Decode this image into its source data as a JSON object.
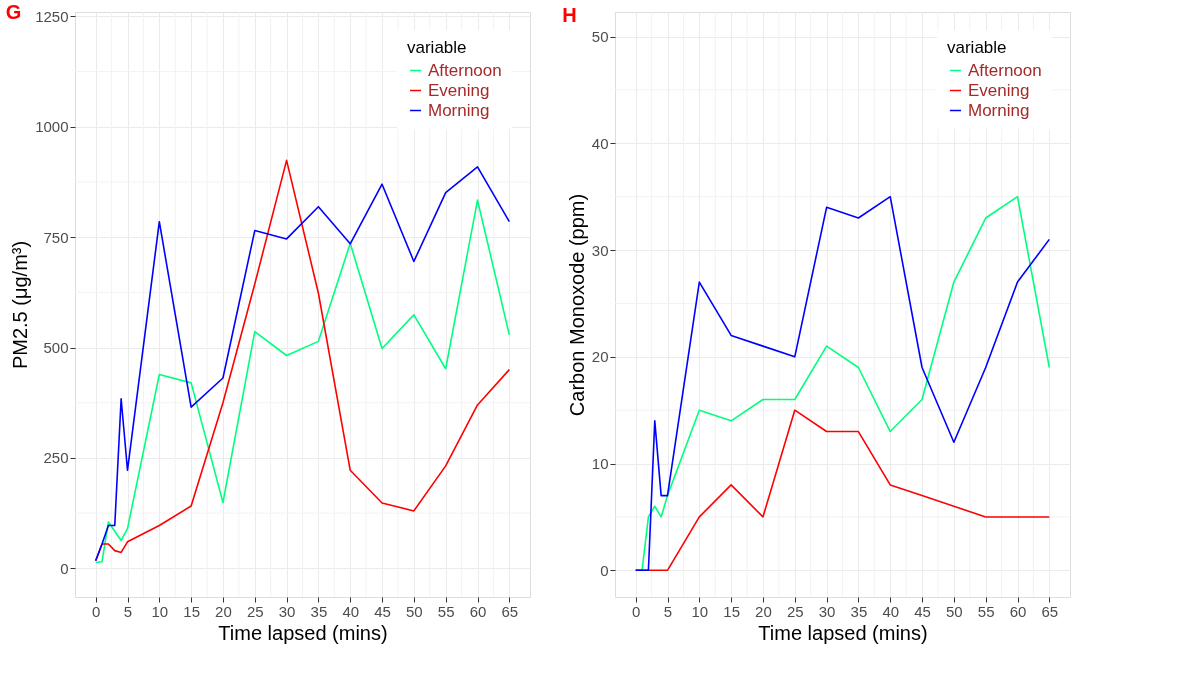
{
  "chart_data": [
    {
      "type": "line",
      "title": "G",
      "xlabel": "Time lapsed (mins)",
      "ylabel": "PM2.5 (μg/m³)",
      "legend_title": "variable",
      "legend": "top right",
      "grid": true,
      "line_style": "solid",
      "x": [
        0,
        1,
        2,
        3,
        4,
        5,
        10,
        15,
        20,
        25,
        30,
        35,
        40,
        45,
        50,
        55,
        60,
        65
      ],
      "xlim": [
        -3.25,
        68.25
      ],
      "xticks": [
        0,
        5,
        10,
        15,
        20,
        25,
        30,
        35,
        40,
        45,
        50,
        55,
        60,
        65
      ],
      "ylim": [
        -65,
        1260
      ],
      "yticks": [
        0,
        250,
        500,
        750,
        1000,
        1250
      ],
      "series": [
        {
          "name": "Afternoon",
          "color": "#00ff7f",
          "values": [
            13,
            15,
            105,
            84,
            63,
            90,
            439,
            420,
            149,
            536,
            482,
            514,
            736,
            498,
            574,
            452,
            834,
            529
          ]
        },
        {
          "name": "Evening",
          "color": "#ff0000",
          "values": [
            17,
            55,
            55,
            40,
            36,
            60,
            97,
            141,
            375,
            644,
            924,
            623,
            222,
            148,
            130,
            232,
            370,
            450
          ]
        },
        {
          "name": "Morning",
          "color": "#0000ff",
          "values": [
            17,
            55,
            97,
            97,
            384,
            222,
            785,
            365,
            431,
            765,
            746,
            819,
            735,
            870,
            695,
            851,
            909,
            785
          ]
        }
      ]
    },
    {
      "type": "line",
      "title": "H",
      "xlabel": "Time lapsed (mins)",
      "ylabel": "Carbon Monoxode (ppm)",
      "legend_title": "variable",
      "legend": "top right",
      "grid": true,
      "line_style": "solid",
      "x": [
        0,
        1,
        2,
        3,
        4,
        5,
        10,
        15,
        20,
        25,
        30,
        35,
        40,
        45,
        50,
        55,
        60,
        65
      ],
      "xlim": [
        -3.25,
        68.25
      ],
      "xticks": [
        0,
        5,
        10,
        15,
        20,
        25,
        30,
        35,
        40,
        45,
        50,
        55,
        60,
        65
      ],
      "ylim": [
        -2.5,
        52.3
      ],
      "yticks": [
        0,
        10,
        20,
        30,
        40,
        50
      ],
      "series": [
        {
          "name": "Afternoon",
          "color": "#00ff7f",
          "values": [
            0,
            0,
            5,
            6,
            5,
            7,
            15,
            14,
            16,
            16,
            21,
            19,
            13,
            16,
            27,
            33,
            35,
            19
          ]
        },
        {
          "name": "Evening",
          "color": "#ff0000",
          "values": [
            0,
            0,
            0,
            0,
            0,
            0,
            5,
            8,
            5,
            15,
            13,
            13,
            8,
            7,
            6,
            5,
            5,
            5
          ]
        },
        {
          "name": "Morning",
          "color": "#0000ff",
          "values": [
            0,
            0,
            0,
            14,
            7,
            7,
            27,
            22,
            21,
            20,
            34,
            33,
            35,
            19,
            12,
            19,
            27,
            31
          ]
        }
      ]
    }
  ]
}
